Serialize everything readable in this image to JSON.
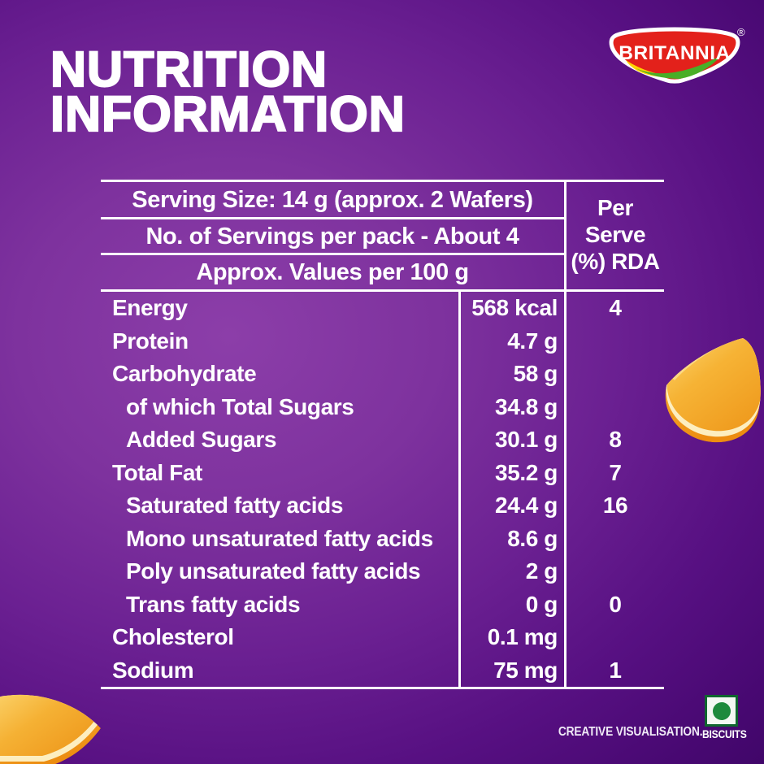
{
  "page": {
    "title_line1": "NUTRITION",
    "title_line2": "INFORMATION"
  },
  "brand": {
    "name": "BRITANNIA",
    "registered_mark": "®",
    "colors": {
      "shield_red": "#e3211b",
      "swoosh_yellow": "#ffd200",
      "swoosh_green": "#49ae27",
      "outline": "#ffffff"
    }
  },
  "table": {
    "header_rows": [
      "Serving Size: 14 g (approx. 2 Wafers)",
      "No. of Servings per pack - About 4",
      "Approx. Values per 100 g"
    ],
    "rda_header": {
      "line1": "Per",
      "line2": "Serve",
      "line3": "(%) RDA"
    },
    "rows": [
      {
        "label": "Energy",
        "value": "568 kcal",
        "rda": "4",
        "indent": false
      },
      {
        "label": "Protein",
        "value": "4.7 g",
        "rda": "",
        "indent": false
      },
      {
        "label": "Carbohydrate",
        "value": "58 g",
        "rda": "",
        "indent": false
      },
      {
        "label": "of which Total Sugars",
        "value": "34.8 g",
        "rda": "",
        "indent": true
      },
      {
        "label": "Added Sugars",
        "value": "30.1 g",
        "rda": "8",
        "indent": true
      },
      {
        "label": "Total Fat",
        "value": "35.2 g",
        "rda": "7",
        "indent": false
      },
      {
        "label": "Saturated fatty acids",
        "value": "24.4 g",
        "rda": "16",
        "indent": true
      },
      {
        "label": "Mono unsaturated fatty acids",
        "value": "8.6 g",
        "rda": "",
        "indent": true
      },
      {
        "label": "Poly unsaturated fatty acids",
        "value": "2 g",
        "rda": "",
        "indent": true
      },
      {
        "label": "Trans fatty acids",
        "value": "0 g",
        "rda": "0",
        "indent": true
      },
      {
        "label": "Cholesterol",
        "value": "0.1 mg",
        "rda": "",
        "indent": false
      },
      {
        "label": "Sodium",
        "value": "75 mg",
        "rda": "1",
        "indent": false
      }
    ]
  },
  "footer": {
    "creative_text": "CREATIVE VISUALISATION.",
    "category_text": "BISCUITS",
    "veg_mark_color": "#1d8a3c"
  },
  "background": {
    "bright_purple": "#8c3ea9",
    "dark_purple": "#330458",
    "orange_accent": "#f3a524"
  }
}
